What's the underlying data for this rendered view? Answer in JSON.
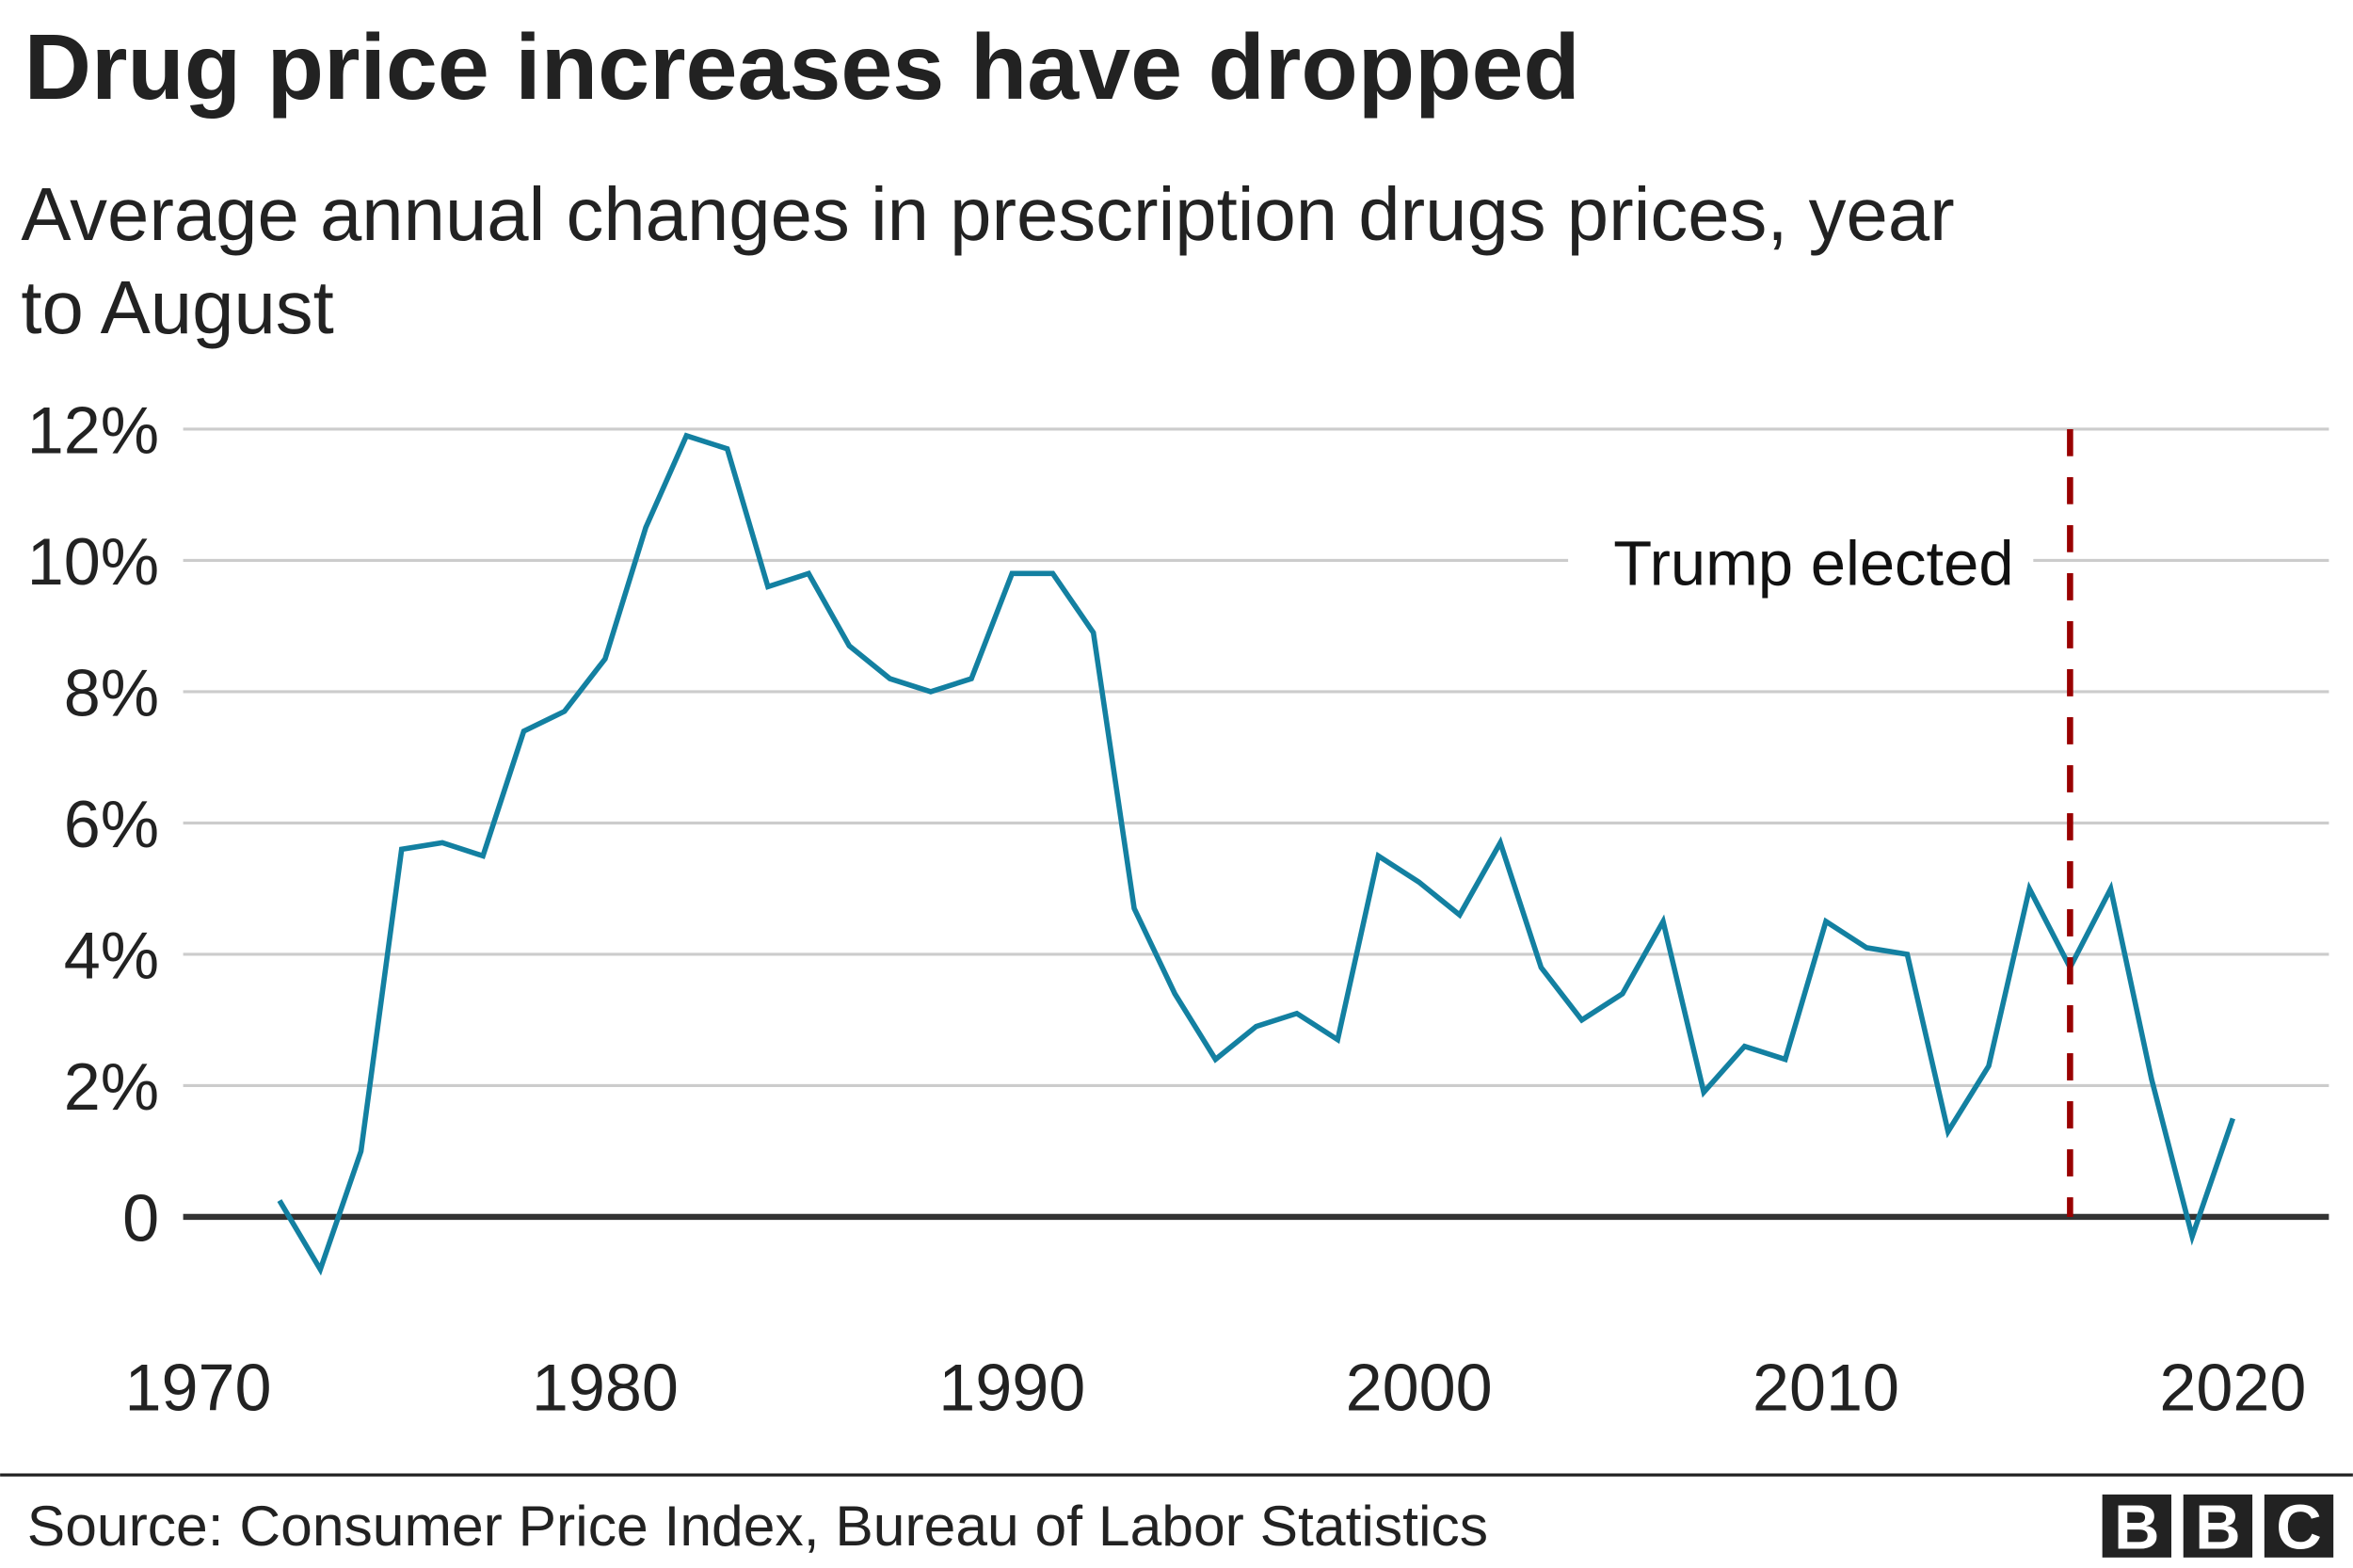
{
  "chart_data": {
    "type": "line",
    "title": "Drug price increases have dropped",
    "subtitle_lines": [
      "Average annual changes in prescription drugs prices, year",
      "to August"
    ],
    "xlabel": "",
    "ylabel": "",
    "x": [
      1972,
      1973,
      1974,
      1975,
      1976,
      1977,
      1978,
      1979,
      1980,
      1981,
      1982,
      1983,
      1984,
      1985,
      1986,
      1987,
      1988,
      1989,
      1990,
      1991,
      1992,
      1993,
      1994,
      1995,
      1996,
      1997,
      1998,
      1999,
      2000,
      2001,
      2002,
      2003,
      2004,
      2005,
      2006,
      2007,
      2008,
      2009,
      2010,
      2011,
      2012,
      2013,
      2014,
      2015,
      2016,
      2017,
      2018,
      2019,
      2020
    ],
    "series": [
      {
        "values": [
          0.25,
          -0.8,
          1.0,
          5.6,
          5.7,
          5.5,
          7.4,
          7.7,
          8.5,
          10.5,
          11.9,
          11.7,
          9.6,
          9.8,
          8.7,
          8.2,
          8.0,
          8.2,
          9.8,
          9.8,
          8.9,
          4.7,
          3.4,
          2.4,
          2.9,
          3.1,
          2.7,
          5.5,
          5.1,
          4.6,
          5.7,
          3.8,
          3.0,
          3.4,
          4.5,
          1.9,
          2.6,
          2.4,
          4.5,
          4.1,
          4.0,
          1.3,
          2.3,
          5.0,
          3.8,
          5.0,
          2.1,
          -0.3,
          1.5
        ],
        "color": "#1380A1"
      }
    ],
    "xlim": [
      1970,
      2020
    ],
    "ylim": [
      -1.5,
      12
    ],
    "x_ticks": [
      1970,
      1980,
      1990,
      2000,
      2010,
      2020
    ],
    "x_tick_labels": [
      "1970",
      "1980",
      "1990",
      "2000",
      "2010",
      "2020"
    ],
    "y_ticks": [
      0,
      2,
      4,
      6,
      8,
      10,
      12
    ],
    "y_tick_labels": [
      "0",
      "2%",
      "4%",
      "6%",
      "8%",
      "10%",
      "12%"
    ],
    "grid": true,
    "annotation": {
      "label": "Trump elected",
      "x": 2016,
      "color": "#990000",
      "style": "dashed"
    },
    "source": "Source: Consumer Price Index, Bureau of Labor Statistics",
    "logo": "BBC"
  }
}
